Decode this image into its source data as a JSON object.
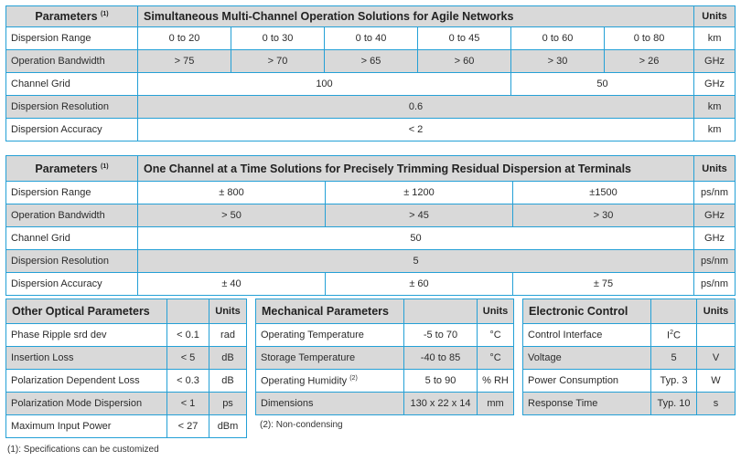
{
  "table1": {
    "title": "Parameters",
    "title_note": "(1)",
    "heading": "Simultaneous Multi-Channel Operation Solutions for Agile Networks",
    "units_header": "Units",
    "rows": {
      "range_label": "Dispersion Range",
      "range_values": [
        "0 to 20",
        "0 to 30",
        "0 to 40",
        "0 to 45",
        "0 to 60",
        "0 to 80"
      ],
      "range_unit": "km",
      "bw_label": "Operation Bandwidth",
      "bw_values": [
        "> 75",
        "> 70",
        "> 65",
        "> 60",
        "> 30",
        "> 26"
      ],
      "bw_unit": "GHz",
      "grid_label": "Channel Grid",
      "grid_values": [
        "100",
        "50"
      ],
      "grid_unit": "GHz",
      "res_label": "Dispersion Resolution",
      "res_value": "0.6",
      "res_unit": "km",
      "acc_label": "Dispersion Accuracy",
      "acc_value": "< 2",
      "acc_unit": "km"
    }
  },
  "table2": {
    "title": "Parameters",
    "title_note": "(1)",
    "heading": "One Channel at a Time Solutions for Precisely Trimming Residual Dispersion at Terminals",
    "units_header": "Units",
    "rows": {
      "range_label": "Dispersion Range",
      "range_values": [
        "± 800",
        "± 1200",
        "±1500"
      ],
      "range_unit": "ps/nm",
      "bw_label": "Operation Bandwidth",
      "bw_values": [
        "> 50",
        "> 45",
        "> 30"
      ],
      "bw_unit": "GHz",
      "grid_label": "Channel Grid",
      "grid_value": "50",
      "grid_unit": "GHz",
      "res_label": "Dispersion Resolution",
      "res_value": "5",
      "res_unit": "ps/nm",
      "acc_label": "Dispersion Accuracy",
      "acc_values": [
        "± 40",
        "± 60",
        "± 75"
      ],
      "acc_unit": "ps/nm"
    }
  },
  "optical": {
    "title": "Other Optical Parameters",
    "units_header": "Units",
    "rows": [
      {
        "label": "Phase Ripple srd dev",
        "value": "< 0.1",
        "unit": "rad"
      },
      {
        "label": "Insertion Loss",
        "value": "< 5",
        "unit": "dB"
      },
      {
        "label": "Polarization Dependent Loss",
        "value": "< 0.3",
        "unit": "dB"
      },
      {
        "label": "Polarization Mode Dispersion",
        "value": "< 1",
        "unit": "ps"
      },
      {
        "label": "Maximum Input Power",
        "value": "< 27",
        "unit": "dBm"
      }
    ]
  },
  "mechanical": {
    "title": "Mechanical Parameters",
    "units_header": "Units",
    "rows": [
      {
        "label": "Operating Temperature",
        "value": "-5 to 70",
        "unit": "°C"
      },
      {
        "label": "Storage Temperature",
        "value": "-40 to 85",
        "unit": "°C"
      },
      {
        "label": "Operating Humidity",
        "note": "(2)",
        "value": "5 to 90",
        "unit": "% RH"
      },
      {
        "label": "Dimensions",
        "value": "130 x 22 x 14",
        "unit": "mm"
      }
    ],
    "footnote": "(2): Non-condensing"
  },
  "electronic": {
    "title": "Electronic Control",
    "units_header": "Units",
    "rows": [
      {
        "label": "Control Interface",
        "value_main": "I",
        "value_sup": "2",
        "value_tail": "C",
        "unit": ""
      },
      {
        "label": "Voltage",
        "value": "5",
        "unit": "V"
      },
      {
        "label": "Power Consumption",
        "value": "Typ. 3",
        "unit": "W"
      },
      {
        "label": "Response Time",
        "value": "Typ. 10",
        "unit": "s"
      }
    ]
  },
  "footnote": "(1): Specifications can be customized"
}
